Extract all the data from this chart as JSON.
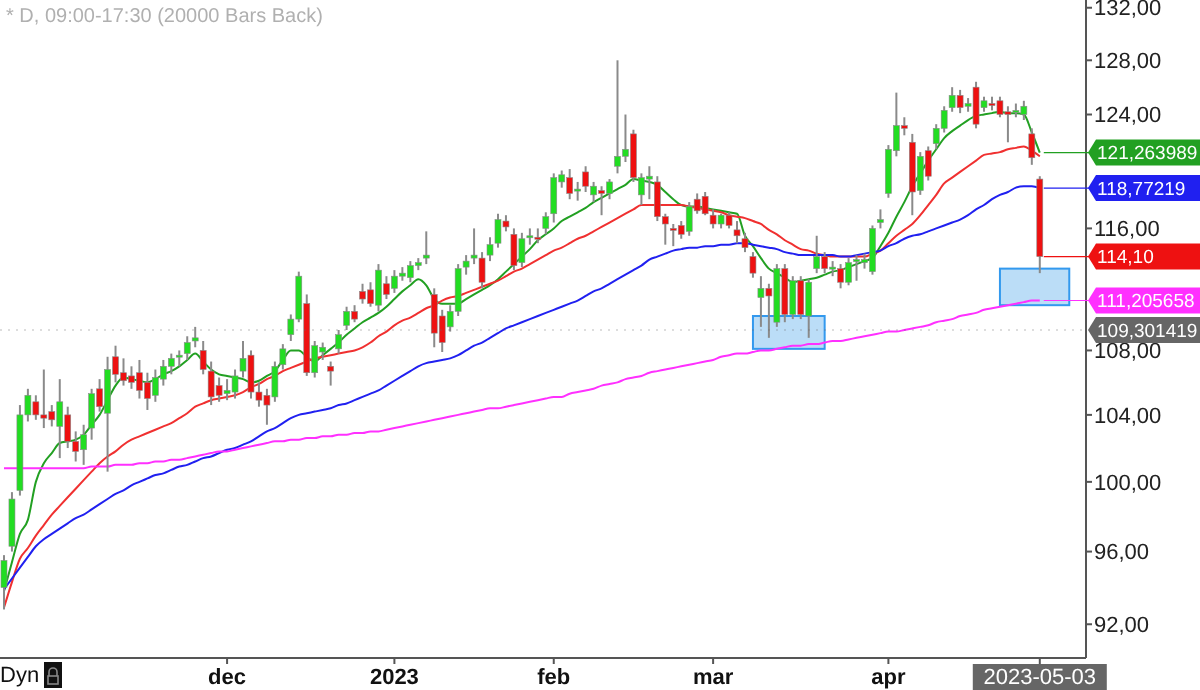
{
  "chart_data": {
    "type": "candlestick",
    "title": "* D, 09:00-17:30 (20000 Bars Back)",
    "log": "y",
    "ylim": [
      90.2,
      132.6
    ],
    "yticks": [
      {
        "value": 92,
        "label": "92,00"
      },
      {
        "value": 96,
        "label": "96,00"
      },
      {
        "value": 100,
        "label": "100,00"
      },
      {
        "value": 104,
        "label": "104,00"
      },
      {
        "value": 108,
        "label": "108,00"
      },
      {
        "value": 116,
        "label": "116,00"
      },
      {
        "value": 124,
        "label": "124,00"
      },
      {
        "value": 128,
        "label": "128,00"
      },
      {
        "value": 132,
        "label": "132,00"
      }
    ],
    "categories": [
      null,
      null,
      null,
      null,
      null,
      null,
      null,
      null,
      null,
      null,
      null,
      null,
      null,
      null,
      null,
      null,
      null,
      null,
      null,
      null,
      null,
      null,
      null,
      null,
      null,
      null,
      null,
      null,
      "dec",
      null,
      null,
      null,
      null,
      null,
      null,
      null,
      null,
      null,
      null,
      null,
      null,
      null,
      null,
      null,
      null,
      null,
      null,
      null,
      null,
      "2023",
      null,
      null,
      null,
      null,
      null,
      null,
      null,
      null,
      null,
      null,
      null,
      null,
      null,
      null,
      null,
      null,
      null,
      null,
      null,
      "feb",
      null,
      null,
      null,
      null,
      null,
      null,
      null,
      null,
      null,
      null,
      null,
      null,
      null,
      null,
      null,
      null,
      null,
      null,
      null,
      "mar",
      null,
      null,
      null,
      null,
      null,
      null,
      null,
      null,
      null,
      null,
      null,
      null,
      null,
      null,
      null,
      null,
      null,
      null,
      null,
      null,
      null,
      "apr",
      null,
      null,
      null,
      null,
      null,
      null,
      null,
      null,
      null,
      null,
      null,
      null,
      null,
      null,
      null,
      null,
      null,
      null,
      "2023-05-03"
    ],
    "ohlc": [
      [
        94.0,
        95.8,
        92.8,
        95.5
      ],
      [
        96.3,
        99.4,
        96.0,
        99.0
      ],
      [
        99.5,
        104.6,
        99.2,
        104.0
      ],
      [
        104.0,
        105.6,
        103.6,
        105.2
      ],
      [
        104.8,
        105.2,
        103.7,
        104.0
      ],
      [
        104.0,
        106.8,
        103.2,
        103.8
      ],
      [
        104.2,
        104.6,
        103.3,
        103.7
      ],
      [
        103.3,
        106.2,
        101.4,
        104.8
      ],
      [
        104.0,
        104.5,
        102.0,
        102.4
      ],
      [
        102.4,
        103.0,
        101.2,
        101.8
      ],
      [
        101.9,
        103.4,
        101.0,
        102.8
      ],
      [
        103.2,
        105.6,
        102.5,
        105.3
      ],
      [
        105.6,
        106.2,
        104.2,
        104.5
      ],
      [
        104.1,
        107.6,
        100.6,
        106.8
      ],
      [
        107.6,
        108.3,
        106.0,
        106.5
      ],
      [
        106.6,
        107.5,
        105.8,
        106.1
      ],
      [
        106.4,
        107.0,
        105.6,
        106.0
      ],
      [
        106.6,
        107.4,
        105.0,
        105.5
      ],
      [
        106.0,
        106.6,
        104.3,
        105.0
      ],
      [
        105.2,
        106.8,
        104.8,
        106.3
      ],
      [
        106.2,
        107.4,
        105.8,
        107.0
      ],
      [
        107.0,
        107.8,
        106.5,
        107.5
      ],
      [
        107.6,
        108.0,
        107.0,
        107.7
      ],
      [
        107.8,
        108.9,
        107.4,
        108.5
      ],
      [
        108.6,
        109.5,
        108.2,
        108.8
      ],
      [
        108.0,
        108.6,
        106.5,
        106.8
      ],
      [
        106.7,
        107.3,
        104.6,
        105.1
      ],
      [
        105.8,
        106.3,
        104.8,
        105.2
      ],
      [
        105.3,
        106.2,
        104.9,
        105.5
      ],
      [
        105.4,
        106.8,
        105.0,
        106.4
      ],
      [
        106.7,
        108.6,
        106.3,
        107.5
      ],
      [
        107.7,
        108.0,
        105.0,
        105.4
      ],
      [
        105.4,
        106.0,
        104.5,
        104.9
      ],
      [
        105.2,
        105.6,
        103.4,
        104.6
      ],
      [
        105.1,
        107.3,
        104.8,
        107.0
      ],
      [
        107.1,
        108.4,
        106.8,
        108.1
      ],
      [
        109.0,
        110.3,
        108.6,
        110.0
      ],
      [
        110.0,
        113.1,
        109.8,
        112.8
      ],
      [
        111.0,
        111.6,
        106.4,
        106.6
      ],
      [
        106.6,
        108.6,
        106.3,
        108.3
      ],
      [
        107.9,
        108.5,
        107.4,
        108.2
      ],
      [
        107.0,
        107.3,
        105.8,
        106.7
      ],
      [
        108.1,
        109.3,
        107.8,
        109.0
      ],
      [
        109.6,
        110.8,
        109.3,
        110.5
      ],
      [
        110.5,
        110.9,
        109.8,
        110.0
      ],
      [
        111.8,
        112.3,
        111.0,
        111.3
      ],
      [
        111.9,
        112.4,
        110.8,
        111.0
      ],
      [
        110.9,
        113.6,
        110.5,
        113.2
      ],
      [
        112.3,
        112.8,
        111.3,
        111.6
      ],
      [
        112.0,
        113.2,
        111.7,
        112.8
      ],
      [
        112.8,
        113.4,
        112.5,
        113.0
      ],
      [
        112.7,
        113.8,
        112.4,
        113.5
      ],
      [
        113.5,
        114.0,
        113.2,
        113.7
      ],
      [
        114.0,
        115.8,
        113.6,
        114.2
      ],
      [
        111.6,
        112.0,
        108.2,
        109.1
      ],
      [
        110.2,
        110.6,
        107.9,
        108.5
      ],
      [
        109.5,
        110.9,
        109.2,
        110.5
      ],
      [
        110.5,
        113.6,
        110.2,
        113.3
      ],
      [
        113.4,
        114.2,
        112.9,
        113.8
      ],
      [
        114.0,
        116.0,
        113.6,
        114.2
      ],
      [
        114.0,
        114.4,
        112.0,
        112.4
      ],
      [
        114.2,
        115.4,
        113.8,
        114.9
      ],
      [
        115.0,
        117.0,
        114.7,
        116.6
      ],
      [
        116.5,
        116.9,
        115.8,
        116.1
      ],
      [
        115.6,
        116.0,
        113.2,
        113.5
      ],
      [
        113.7,
        115.7,
        113.4,
        115.3
      ],
      [
        115.4,
        116.0,
        114.9,
        115.5
      ],
      [
        115.4,
        116.0,
        115.0,
        115.3
      ],
      [
        116.0,
        117.1,
        115.6,
        116.8
      ],
      [
        117.0,
        119.8,
        116.4,
        119.5
      ],
      [
        119.2,
        120.0,
        118.8,
        119.7
      ],
      [
        119.5,
        120.1,
        118.0,
        118.4
      ],
      [
        118.6,
        119.2,
        117.9,
        118.7
      ],
      [
        119.9,
        120.3,
        118.5,
        118.9
      ],
      [
        118.3,
        119.2,
        117.8,
        118.9
      ],
      [
        118.6,
        118.9,
        116.9,
        118.4
      ],
      [
        118.4,
        119.4,
        118.0,
        119.2
      ],
      [
        120.3,
        128.0,
        119.8,
        121.0
      ],
      [
        121.0,
        124.0,
        120.6,
        121.5
      ],
      [
        122.6,
        122.9,
        119.2,
        119.5
      ],
      [
        118.3,
        119.8,
        117.6,
        119.5
      ],
      [
        119.4,
        120.3,
        118.0,
        119.6
      ],
      [
        119.2,
        119.6,
        116.5,
        116.8
      ],
      [
        116.8,
        117.0,
        114.9,
        116.3
      ],
      [
        116.0,
        116.3,
        114.8,
        115.9
      ],
      [
        116.2,
        116.5,
        115.3,
        115.6
      ],
      [
        115.8,
        117.8,
        115.5,
        117.5
      ],
      [
        118.0,
        118.4,
        117.0,
        117.2
      ],
      [
        118.2,
        118.5,
        116.9,
        117.0
      ],
      [
        116.9,
        117.3,
        116.0,
        116.3
      ],
      [
        116.3,
        117.0,
        116.0,
        116.9
      ],
      [
        116.9,
        117.1,
        116.0,
        116.2
      ],
      [
        115.9,
        116.5,
        115.0,
        115.5
      ],
      [
        115.3,
        115.7,
        114.4,
        114.7
      ],
      [
        114.1,
        114.4,
        112.7,
        113.0
      ],
      [
        111.4,
        112.8,
        109.5,
        112.0
      ],
      [
        112.0,
        112.3,
        108.8,
        111.5
      ],
      [
        109.8,
        113.6,
        109.5,
        113.3
      ],
      [
        113.3,
        113.6,
        109.8,
        110.3
      ],
      [
        110.3,
        112.8,
        110.0,
        112.5
      ],
      [
        112.5,
        112.8,
        110.0,
        110.3
      ],
      [
        110.2,
        112.6,
        108.8,
        112.4
      ],
      [
        113.3,
        115.5,
        113.0,
        114.1
      ],
      [
        114.1,
        114.4,
        113.0,
        113.3
      ],
      [
        113.3,
        113.8,
        112.8,
        113.4
      ],
      [
        113.3,
        113.6,
        112.0,
        112.4
      ],
      [
        112.4,
        114.0,
        112.2,
        113.7
      ],
      [
        113.8,
        114.2,
        112.5,
        113.9
      ],
      [
        113.7,
        114.3,
        113.3,
        113.9
      ],
      [
        113.1,
        116.2,
        112.9,
        116.0
      ],
      [
        116.4,
        117.3,
        116.0,
        116.6
      ],
      [
        118.4,
        121.8,
        118.1,
        121.5
      ],
      [
        121.4,
        125.6,
        121.0,
        123.2
      ],
      [
        123.2,
        123.8,
        122.5,
        123.0
      ],
      [
        122.0,
        122.6,
        116.9,
        118.5
      ],
      [
        118.6,
        121.3,
        118.3,
        121.0
      ],
      [
        121.4,
        121.7,
        119.3,
        119.6
      ],
      [
        121.9,
        123.3,
        121.5,
        123.0
      ],
      [
        123.0,
        124.6,
        122.7,
        124.3
      ],
      [
        124.5,
        126.0,
        124.2,
        125.4
      ],
      [
        125.4,
        125.8,
        124.1,
        124.5
      ],
      [
        124.6,
        125.2,
        124.2,
        124.8
      ],
      [
        126.0,
        126.4,
        123.0,
        123.3
      ],
      [
        124.5,
        125.3,
        124.2,
        125.0
      ],
      [
        124.8,
        125.3,
        124.3,
        124.7
      ],
      [
        125.0,
        125.3,
        123.8,
        124.0
      ],
      [
        124.2,
        124.6,
        122.0,
        124.0
      ],
      [
        124.2,
        124.8,
        123.8,
        124.3
      ],
      [
        124.0,
        125.0,
        123.6,
        124.6
      ],
      [
        122.6,
        123.0,
        120.4,
        120.9
      ],
      [
        119.4,
        119.6,
        113.0,
        114.1
      ]
    ],
    "series": [
      {
        "type": "line",
        "color": "#22a022",
        "values": [
          93.8,
          95.4,
          97.0,
          97.8,
          100.0,
          101.1,
          101.7,
          102.3,
          102.4,
          102.5,
          102.8,
          103.4,
          104.0,
          104.9,
          105.8,
          106.3,
          106.2,
          106.1,
          106.0,
          106.2,
          106.5,
          106.7,
          107.0,
          107.4,
          107.8,
          107.3,
          106.8,
          106.5,
          106.4,
          106.3,
          106.2,
          106.0,
          106.1,
          106.4,
          106.7,
          107.4,
          108.0,
          108.0,
          107.6,
          107.3,
          107.7,
          108.1,
          108.5,
          109.0,
          109.4,
          109.8,
          110.1,
          110.4,
          110.8,
          111.3,
          111.8,
          112.2,
          112.6,
          112.2,
          111.3,
          111.0,
          111.0,
          111.0,
          111.3,
          111.6,
          111.9,
          112.2,
          112.6,
          113.1,
          113.6,
          114.1,
          114.6,
          115.2,
          115.6,
          116.0,
          116.5,
          116.8,
          117.1,
          117.4,
          117.8,
          118.1,
          118.4,
          118.7,
          119.0,
          119.4,
          119.3,
          119.2,
          119.0,
          118.5,
          118.0,
          117.6,
          117.5,
          117.5,
          117.4,
          117.3,
          117.2,
          117.1,
          117.0,
          115.5,
          114.8,
          114.0,
          113.3,
          113.0,
          112.7,
          112.4,
          112.5,
          112.6,
          112.7,
          112.9,
          113.1,
          113.2,
          113.4,
          113.6,
          113.8,
          114.0,
          114.8,
          115.7,
          116.8,
          117.8,
          118.9,
          119.8,
          120.7,
          121.5,
          122.3,
          122.8,
          123.2,
          123.6,
          123.9,
          124.0,
          124.1,
          124.2,
          124.1,
          124.1,
          124.0,
          122.7,
          121.263989
        ],
        "value_labels": [
          null,
          null,
          null,
          null,
          null,
          null,
          null,
          null,
          null,
          null,
          null,
          null,
          null,
          null,
          null,
          null,
          null,
          null,
          null,
          null,
          null,
          null,
          null,
          null,
          null,
          null,
          null,
          null,
          null,
          null,
          null,
          null,
          null,
          null,
          null,
          null,
          null,
          null,
          null,
          null,
          null,
          null,
          null,
          null,
          null,
          null,
          null,
          null,
          null,
          null,
          null,
          null,
          null,
          null,
          null,
          null,
          null,
          null,
          null,
          null,
          null,
          null,
          null,
          null,
          null,
          null,
          null,
          null,
          null,
          null,
          null,
          null,
          null,
          null,
          null,
          null,
          null,
          null,
          null,
          null,
          null,
          null,
          null,
          null,
          null,
          null,
          null,
          null,
          null,
          null,
          null,
          null,
          null,
          null,
          null,
          null,
          null,
          null,
          null,
          null,
          null,
          null,
          null,
          null,
          null,
          null,
          null,
          null,
          null,
          null,
          null,
          null,
          null,
          null,
          null,
          null,
          null,
          null,
          null,
          null,
          null,
          null,
          null,
          null,
          null,
          null,
          null,
          null,
          null,
          null,
          "121,263989"
        ]
      },
      {
        "type": "line",
        "color": "#f03030",
        "values": [
          92.9,
          94.3,
          95.6,
          96.2,
          96.9,
          97.5,
          98.1,
          98.6,
          99.1,
          99.6,
          100.1,
          100.6,
          101.1,
          101.5,
          101.8,
          102.2,
          102.5,
          102.7,
          102.9,
          103.1,
          103.3,
          103.5,
          103.8,
          104.1,
          104.5,
          104.7,
          104.9,
          105.0,
          105.1,
          105.2,
          105.4,
          105.7,
          105.9,
          106.2,
          106.4,
          106.7,
          106.9,
          107.1,
          107.3,
          107.5,
          107.6,
          107.7,
          107.8,
          107.9,
          108.0,
          108.2,
          108.5,
          108.9,
          109.2,
          109.6,
          109.9,
          110.1,
          110.4,
          110.7,
          110.9,
          111.2,
          111.4,
          111.5,
          111.7,
          111.9,
          112.1,
          112.3,
          112.5,
          112.8,
          113.1,
          113.3,
          113.6,
          113.9,
          114.2,
          114.5,
          114.7,
          115.0,
          115.3,
          115.5,
          115.8,
          116.1,
          116.4,
          116.7,
          117.0,
          117.3,
          117.6,
          117.6,
          117.6,
          117.6,
          117.6,
          117.6,
          117.5,
          117.4,
          117.3,
          117.2,
          117.1,
          116.9,
          116.8,
          116.7,
          116.5,
          116.3,
          115.9,
          115.6,
          115.2,
          114.9,
          114.6,
          114.5,
          114.3,
          114.2,
          114.1,
          114.1,
          114.1,
          114.1,
          114.1,
          114.3,
          114.5,
          115.0,
          115.5,
          115.9,
          116.3,
          116.9,
          117.6,
          118.3,
          119.1,
          119.5,
          119.9,
          120.3,
          120.7,
          121.1,
          121.2,
          121.3,
          121.5,
          121.6,
          121.7,
          121.4,
          121.0
        ]
      },
      {
        "type": "line",
        "color": "#2020f0",
        "values": [
          93.9,
          94.5,
          95.1,
          95.7,
          96.3,
          96.7,
          97.0,
          97.3,
          97.6,
          97.9,
          98.1,
          98.4,
          98.7,
          99.0,
          99.3,
          99.5,
          99.8,
          100.0,
          100.2,
          100.4,
          100.5,
          100.7,
          100.9,
          101.0,
          101.2,
          101.4,
          101.5,
          101.7,
          101.9,
          102.0,
          102.2,
          102.4,
          102.7,
          103.0,
          103.2,
          103.5,
          103.8,
          104.0,
          104.1,
          104.2,
          104.3,
          104.4,
          104.6,
          104.7,
          104.9,
          105.1,
          105.3,
          105.5,
          105.8,
          106.1,
          106.4,
          106.7,
          107.0,
          107.2,
          107.3,
          107.4,
          107.5,
          107.7,
          108.0,
          108.3,
          108.5,
          108.8,
          109.1,
          109.4,
          109.6,
          109.8,
          110.0,
          110.2,
          110.4,
          110.6,
          110.8,
          111.0,
          111.2,
          111.5,
          111.8,
          112.0,
          112.3,
          112.6,
          112.9,
          113.2,
          113.5,
          113.9,
          114.1,
          114.3,
          114.5,
          114.6,
          114.7,
          114.7,
          114.8,
          114.8,
          114.9,
          114.9,
          115.0,
          115.0,
          114.9,
          114.8,
          114.7,
          114.6,
          114.4,
          114.3,
          114.2,
          114.2,
          114.2,
          114.2,
          114.2,
          114.1,
          114.1,
          114.2,
          114.3,
          114.4,
          114.5,
          114.8,
          115.0,
          115.3,
          115.5,
          115.6,
          115.8,
          116.0,
          116.2,
          116.4,
          116.6,
          116.9,
          117.3,
          117.6,
          118.0,
          118.3,
          118.5,
          118.8,
          118.9,
          118.9,
          118.77219
        ],
        "value_labels": [
          null,
          null,
          null,
          null,
          null,
          null,
          null,
          null,
          null,
          null,
          null,
          null,
          null,
          null,
          null,
          null,
          null,
          null,
          null,
          null,
          null,
          null,
          null,
          null,
          null,
          null,
          null,
          null,
          null,
          null,
          null,
          null,
          null,
          null,
          null,
          null,
          null,
          null,
          null,
          null,
          null,
          null,
          null,
          null,
          null,
          null,
          null,
          null,
          null,
          null,
          null,
          null,
          null,
          null,
          null,
          null,
          null,
          null,
          null,
          null,
          null,
          null,
          null,
          null,
          null,
          null,
          null,
          null,
          null,
          null,
          null,
          null,
          null,
          null,
          null,
          null,
          null,
          null,
          null,
          null,
          null,
          null,
          null,
          null,
          null,
          null,
          null,
          null,
          null,
          null,
          null,
          null,
          null,
          null,
          null,
          null,
          null,
          null,
          null,
          null,
          null,
          null,
          null,
          null,
          null,
          null,
          null,
          null,
          null,
          null,
          null,
          null,
          null,
          null,
          null,
          null,
          null,
          null,
          null,
          null,
          null,
          null,
          null,
          null,
          null,
          null,
          null,
          null,
          null,
          null,
          "118,77219"
        ]
      },
      {
        "type": "line",
        "color": "#ff30ff",
        "values": [
          100.8,
          100.8,
          100.8,
          100.8,
          100.8,
          100.8,
          100.8,
          100.8,
          100.8,
          100.8,
          100.8,
          100.9,
          100.9,
          100.9,
          101.0,
          101.0,
          101.0,
          101.1,
          101.1,
          101.2,
          101.2,
          101.3,
          101.3,
          101.4,
          101.5,
          101.6,
          101.7,
          101.8,
          101.8,
          101.9,
          102.0,
          102.1,
          102.2,
          102.3,
          102.4,
          102.4,
          102.5,
          102.5,
          102.6,
          102.6,
          102.7,
          102.7,
          102.8,
          102.8,
          102.9,
          102.9,
          103.0,
          103.0,
          103.1,
          103.2,
          103.3,
          103.4,
          103.5,
          103.6,
          103.7,
          103.8,
          103.9,
          104.0,
          104.1,
          104.2,
          104.3,
          104.4,
          104.4,
          104.5,
          104.6,
          104.7,
          104.8,
          104.9,
          105.0,
          105.1,
          105.1,
          105.3,
          105.4,
          105.5,
          105.6,
          105.8,
          105.9,
          106.0,
          106.2,
          106.3,
          106.4,
          106.6,
          106.7,
          106.8,
          106.9,
          107.0,
          107.1,
          107.2,
          107.3,
          107.4,
          107.6,
          107.7,
          107.8,
          107.8,
          107.9,
          108.0,
          108.0,
          108.1,
          108.2,
          108.3,
          108.3,
          108.4,
          108.4,
          108.5,
          108.6,
          108.6,
          108.7,
          108.8,
          108.9,
          109.0,
          109.1,
          109.2,
          109.2,
          109.3,
          109.4,
          109.5,
          109.6,
          109.8,
          109.9,
          110.0,
          110.2,
          110.3,
          110.4,
          110.6,
          110.7,
          110.8,
          110.9,
          111.0,
          111.1,
          111.2,
          111.205658
        ],
        "value_labels": [
          null,
          null,
          null,
          null,
          null,
          null,
          null,
          null,
          null,
          null,
          null,
          null,
          null,
          null,
          null,
          null,
          null,
          null,
          null,
          null,
          null,
          null,
          null,
          null,
          null,
          null,
          null,
          null,
          null,
          null,
          null,
          null,
          null,
          null,
          null,
          null,
          null,
          null,
          null,
          null,
          null,
          null,
          null,
          null,
          null,
          null,
          null,
          null,
          null,
          null,
          null,
          null,
          null,
          null,
          null,
          null,
          null,
          null,
          null,
          null,
          null,
          null,
          null,
          null,
          null,
          null,
          null,
          null,
          null,
          null,
          null,
          null,
          null,
          null,
          null,
          null,
          null,
          null,
          null,
          null,
          null,
          null,
          null,
          null,
          null,
          null,
          null,
          null,
          null,
          null,
          null,
          null,
          null,
          null,
          null,
          null,
          null,
          null,
          null,
          null,
          null,
          null,
          null,
          null,
          null,
          null,
          null,
          null,
          null,
          null,
          null,
          null,
          null,
          null,
          null,
          null,
          null,
          null,
          null,
          null,
          null,
          null,
          null,
          null,
          null,
          null,
          null,
          null,
          null,
          null,
          "111,205658"
        ]
      }
    ],
    "ref_lines": [
      {
        "axis": "y",
        "value": 109.301419,
        "label": "109,301419",
        "color": "#666666"
      }
    ],
    "annotations": [
      "Dyn",
      {
        "text": "114,10",
        "x": "2023-05-03",
        "y": 114.1
      }
    ]
  }
}
